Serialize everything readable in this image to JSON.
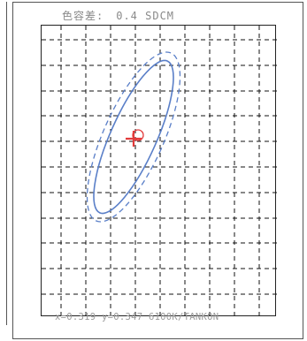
{
  "header": {
    "tolerance_label": "色容差:",
    "tolerance_value": "0.4 SDCM"
  },
  "readout": {
    "text": "x=0.319 y=0.347 6100K/TANKON"
  },
  "colors": {
    "ellipse": "#5a7fc8",
    "marker": "#e23b3b",
    "grid": "#111111"
  }
}
